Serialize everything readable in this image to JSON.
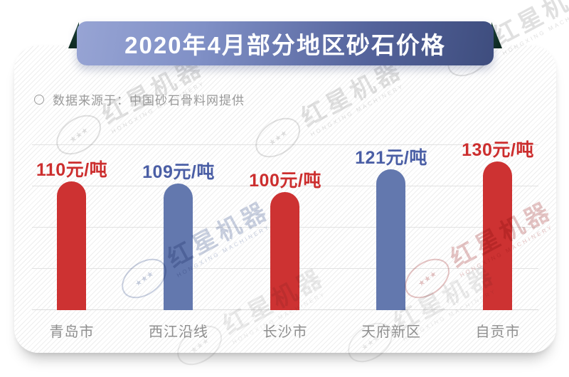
{
  "header": {
    "title": "2020年4月部分地区砂石价格",
    "source_label": "数据来源于：中国砂石骨料网提供"
  },
  "watermark": {
    "brand": "红星机器",
    "caption": "HONGXING MACHINERY",
    "stars": "★★★"
  },
  "chart_data": {
    "type": "bar",
    "title": "2020年4月部分地区砂石价格",
    "source": "中国砂石骨料网",
    "unit": "元/吨",
    "categories": [
      "青岛市",
      "西江沿线",
      "长沙市",
      "天府新区",
      "自贡市"
    ],
    "values": [
      110,
      109,
      100,
      121,
      130
    ],
    "value_labels": [
      "110元/吨",
      "109元/吨",
      "100元/吨",
      "121元/吨",
      "130元/吨"
    ],
    "bar_colors": [
      "#cd3232",
      "#6378ae",
      "#cd3232",
      "#6378ae",
      "#cd3232"
    ],
    "label_colors": [
      "#cc2e2e",
      "#4a5ea5",
      "#cc2e2e",
      "#4a5ea5",
      "#cc2e2e"
    ],
    "grid": true,
    "legend": false,
    "gridline_count": 5,
    "accent_banner_gradient": [
      "#97a4d4",
      "#3e4d7e"
    ],
    "ribbon_fold_color": "#123227"
  }
}
